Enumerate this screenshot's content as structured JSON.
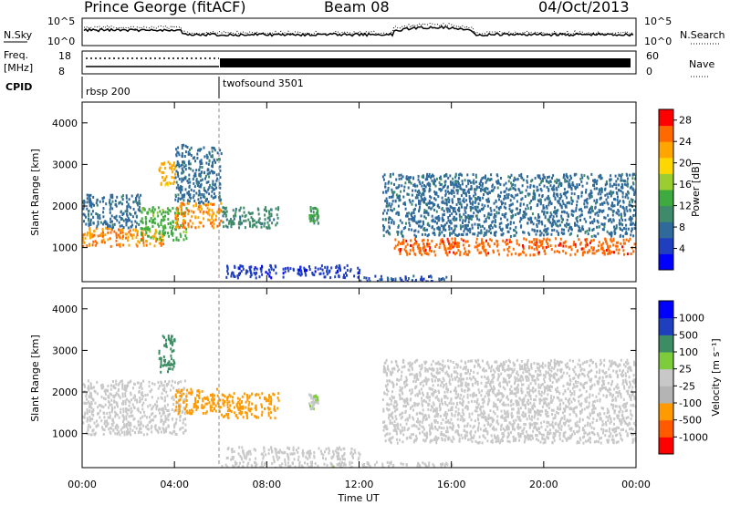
{
  "header": {
    "station": "Prince George (fitACF)",
    "beam": "Beam 08",
    "date": "04/Oct/2013"
  },
  "summary": {
    "nsky_label": "N.Sky",
    "nsearch_label": "N.Search",
    "freq_label_1": "Freq.",
    "freq_label_2": "[MHz]",
    "nave_label": "Nave",
    "cpid_label": "CPID",
    "noise_ticks": [
      "10^5",
      "10^0"
    ],
    "freq_ticks": [
      "18",
      "8"
    ],
    "nave_ticks": [
      "60",
      "0"
    ],
    "cpid_segments": [
      "rbsp 200",
      "twofsound 3501"
    ]
  },
  "colors": {
    "power": [
      "#0000ff",
      "#1f3fbf",
      "#2f6a9a",
      "#3f8a6a",
      "#3faa3f",
      "#9acd32",
      "#ffd700",
      "#ffa500",
      "#ff6a00",
      "#ff0000"
    ],
    "velocity": [
      "#ff0000",
      "#ff5a00",
      "#ff9a00",
      "#b4b4b4",
      "#c8c8c8",
      "#7ccc3c",
      "#3c8c64",
      "#1f3fbf",
      "#0000ff"
    ]
  },
  "chart_data": [
    {
      "type": "heatmap",
      "title": "",
      "xlabel": "Time UT",
      "ylabel": "Slant Range [km]",
      "x_ticks": [
        "00:00",
        "04:00",
        "08:00",
        "12:00",
        "16:00",
        "20:00",
        "00:00"
      ],
      "y_ticks": [
        "1000",
        "2000",
        "3000",
        "4000"
      ],
      "xlim": [
        0,
        24
      ],
      "ylim": [
        180,
        4500
      ],
      "colorbar_label": "Power [dB]",
      "colorbar_ticks": [
        "4",
        "8",
        "12",
        "16",
        "20",
        "24",
        "28"
      ],
      "colorbar_range": [
        0,
        30
      ],
      "blobs": [
        {
          "x": [
            0,
            3.5
          ],
          "y": [
            1050,
            1500
          ],
          "value": 24
        },
        {
          "x": [
            0,
            2.5
          ],
          "y": [
            1500,
            2300
          ],
          "value": 8
        },
        {
          "x": [
            2.5,
            4.5
          ],
          "y": [
            1200,
            2000
          ],
          "value": 14
        },
        {
          "x": [
            3.3,
            4
          ],
          "y": [
            2500,
            3100
          ],
          "value": 22
        },
        {
          "x": [
            4,
            6
          ],
          "y": [
            1500,
            2100
          ],
          "value": 24
        },
        {
          "x": [
            4,
            6
          ],
          "y": [
            2100,
            3500
          ],
          "value": 8
        },
        {
          "x": [
            6,
            8.5
          ],
          "y": [
            1500,
            2000
          ],
          "value": 10
        },
        {
          "x": [
            9.8,
            10.2
          ],
          "y": [
            1600,
            2000
          ],
          "value": 12
        },
        {
          "x": [
            6.2,
            12
          ],
          "y": [
            300,
            600
          ],
          "value": 4
        },
        {
          "x": [
            12,
            16
          ],
          "y": [
            200,
            350
          ],
          "value": 6
        },
        {
          "x": [
            13.5,
            24
          ],
          "y": [
            850,
            1250
          ],
          "value": 26
        },
        {
          "x": [
            13,
            24
          ],
          "y": [
            1300,
            2800
          ],
          "value": 8
        }
      ]
    },
    {
      "type": "heatmap",
      "title": "",
      "xlabel": "Time UT",
      "ylabel": "Slant Range [km]",
      "x_ticks": [
        "00:00",
        "04:00",
        "08:00",
        "12:00",
        "16:00",
        "20:00",
        "00:00"
      ],
      "y_ticks": [
        "1000",
        "2000",
        "3000",
        "4000"
      ],
      "xlim": [
        0,
        24
      ],
      "ylim": [
        180,
        4500
      ],
      "colorbar_label": "Velocity [m s⁻¹]",
      "colorbar_ticks": [
        "1000",
        "500",
        "100",
        "25",
        "-25",
        "-100",
        "-500",
        "-1000"
      ],
      "colorbar_range": [
        -1000,
        1000
      ],
      "blobs": [
        {
          "x": [
            0,
            4.5
          ],
          "y": [
            1000,
            2300
          ],
          "value": 0
        },
        {
          "x": [
            3.3,
            4
          ],
          "y": [
            2500,
            3400
          ],
          "value": 500
        },
        {
          "x": [
            4,
            6
          ],
          "y": [
            1500,
            2100
          ],
          "value": -400
        },
        {
          "x": [
            6,
            8.5
          ],
          "y": [
            1400,
            2000
          ],
          "value": -400
        },
        {
          "x": [
            9.8,
            10.2
          ],
          "y": [
            1600,
            2000
          ],
          "value": 100
        },
        {
          "x": [
            6.2,
            12
          ],
          "y": [
            400,
            700
          ],
          "value": 0
        },
        {
          "x": [
            6,
            16
          ],
          "y": [
            180,
            350
          ],
          "value": 60
        },
        {
          "x": [
            13,
            24
          ],
          "y": [
            800,
            2800
          ],
          "value": 0
        }
      ]
    }
  ]
}
